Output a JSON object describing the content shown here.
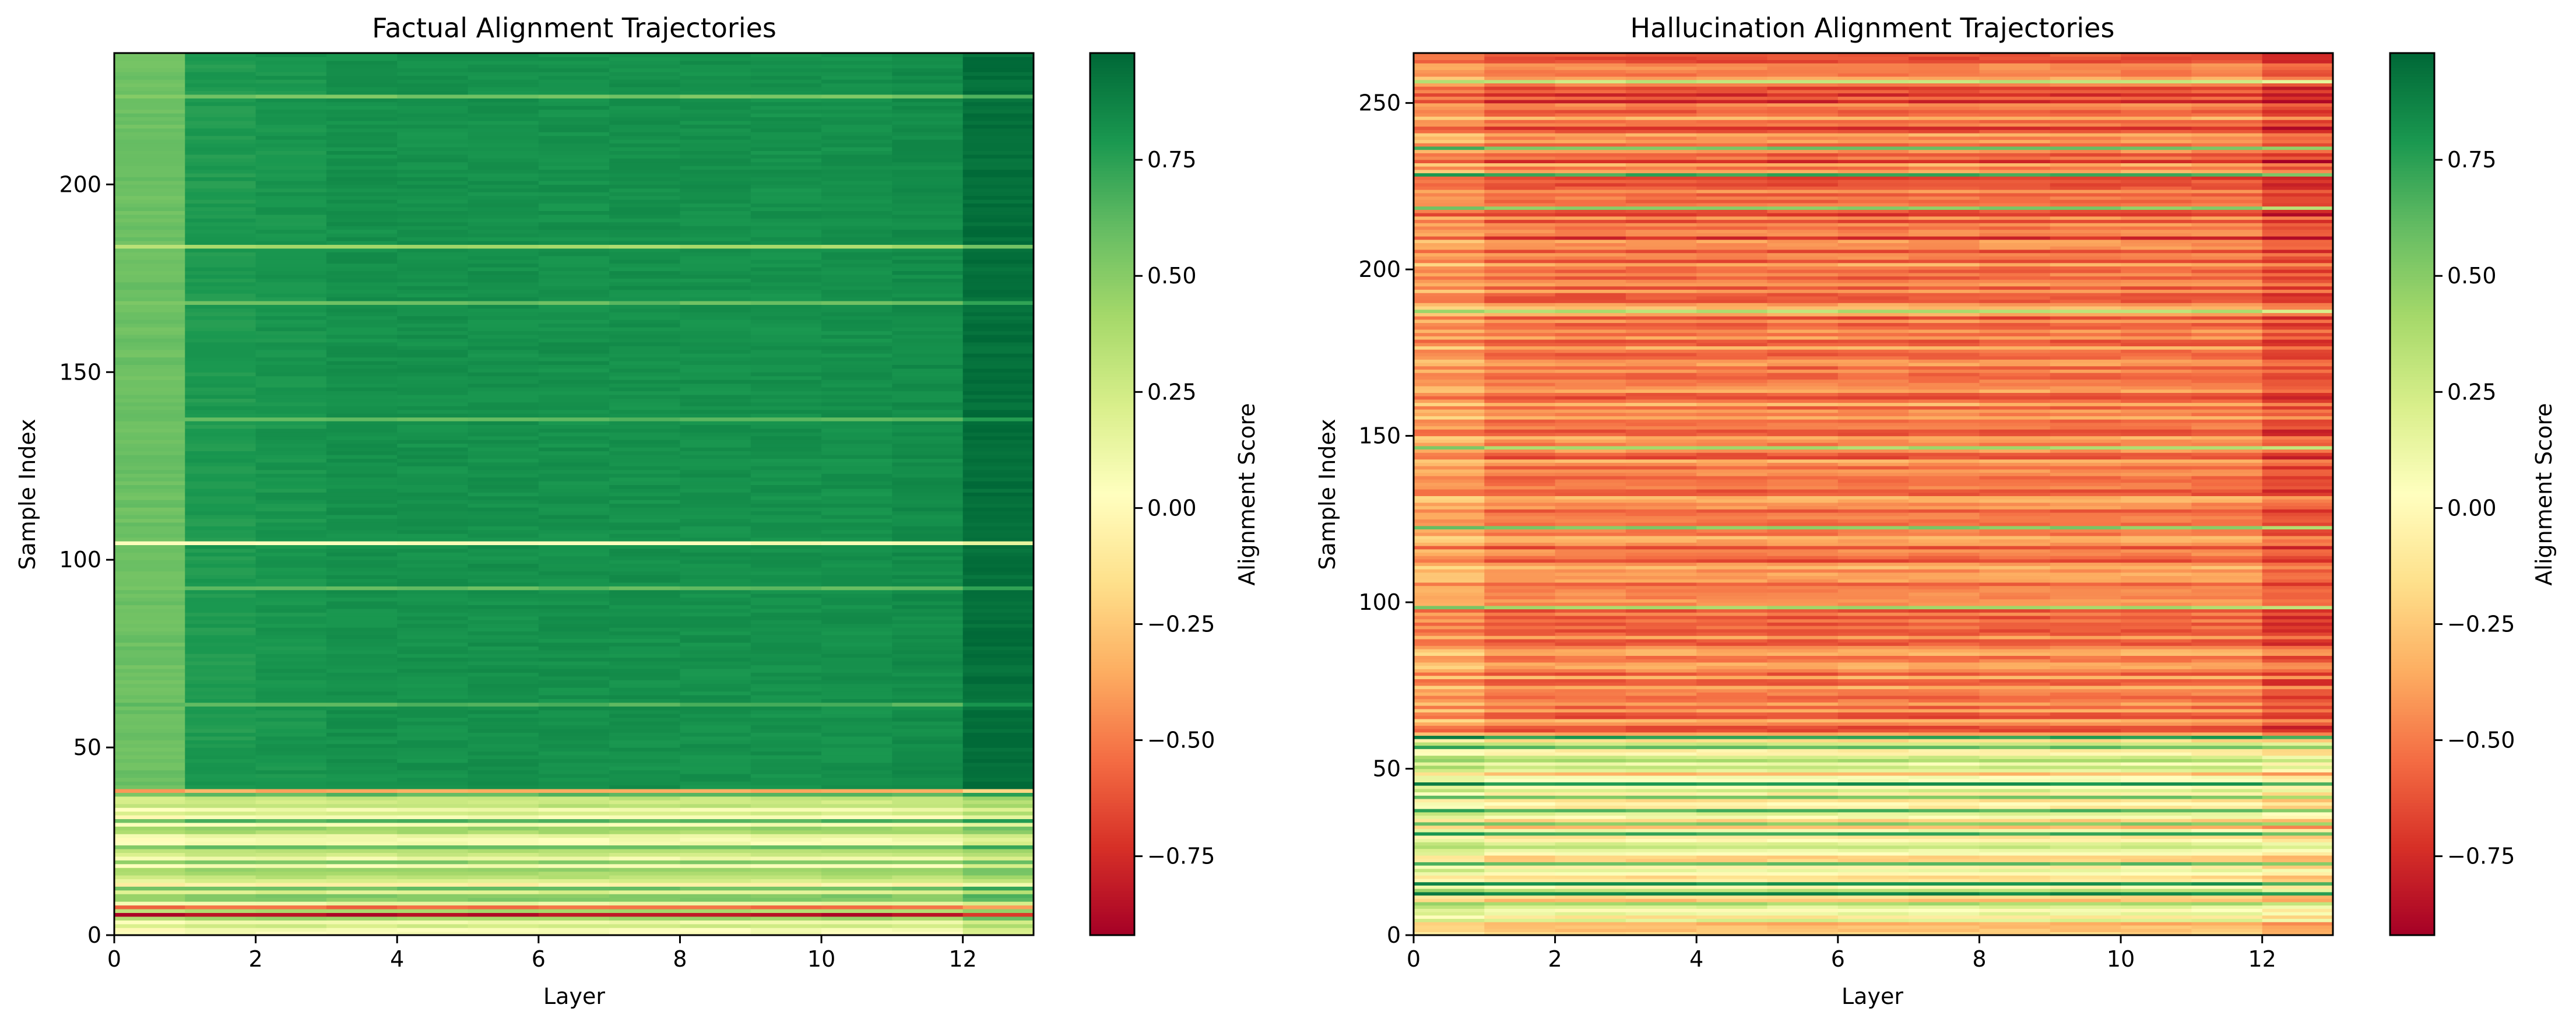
{
  "chart_data": [
    {
      "type": "heatmap",
      "title": "Factual Alignment Trajectories",
      "xlabel": "Layer",
      "ylabel": "Sample Index",
      "xlim": [
        0,
        13
      ],
      "ylim": [
        0,
        235
      ],
      "xticks": [
        0,
        2,
        4,
        6,
        8,
        10,
        12
      ],
      "yticks": [
        0,
        50,
        100,
        150,
        200
      ],
      "n_layers": 13,
      "n_samples": 235,
      "colormap": "RdYlGn",
      "colorbar": {
        "label": "Alignment Score",
        "range": [
          -0.92,
          0.98
        ],
        "ticks": [
          -0.75,
          -0.5,
          -0.25,
          0.0,
          0.25,
          0.5,
          0.75
        ],
        "tick_labels": [
          "−0.75",
          "−0.50",
          "−0.25",
          "0.00",
          "0.25",
          "0.50",
          "0.75"
        ]
      },
      "layer_profile": [
        0.58,
        0.78,
        0.8,
        0.82,
        0.82,
        0.82,
        0.82,
        0.82,
        0.82,
        0.82,
        0.82,
        0.84,
        0.95
      ],
      "low_band_max_sample": 39,
      "low_band_rows": [
        {
          "sample": 38,
          "value": -0.35
        },
        {
          "sample": 36,
          "value": 0.3
        },
        {
          "sample": 33,
          "value": 0.1
        },
        {
          "sample": 31,
          "value": 0.05
        },
        {
          "sample": 28,
          "value": 0.45
        },
        {
          "sample": 26,
          "value": 0.15
        },
        {
          "sample": 22,
          "value": 0.35
        },
        {
          "sample": 20,
          "value": 0.1
        },
        {
          "sample": 16,
          "value": 0.4
        },
        {
          "sample": 13,
          "value": -0.05
        },
        {
          "sample": 11,
          "value": 0.2
        },
        {
          "sample": 7,
          "value": -0.55
        },
        {
          "sample": 5,
          "value": -0.85
        },
        {
          "sample": 2,
          "value": 0.25
        }
      ],
      "outlier_rows": [
        {
          "sample": 104,
          "value": 0.05
        },
        {
          "sample": 183,
          "value": 0.4
        },
        {
          "sample": 223,
          "value": 0.55
        },
        {
          "sample": 168,
          "value": 0.6
        },
        {
          "sample": 92,
          "value": 0.6
        },
        {
          "sample": 137,
          "value": 0.62
        },
        {
          "sample": 61,
          "value": 0.65
        }
      ]
    },
    {
      "type": "heatmap",
      "title": "Hallucination Alignment Trajectories",
      "xlabel": "Layer",
      "ylabel": "Sample Index",
      "xlim": [
        0,
        13
      ],
      "ylim": [
        0,
        265
      ],
      "xticks": [
        0,
        2,
        4,
        6,
        8,
        10,
        12
      ],
      "yticks": [
        0,
        50,
        100,
        150,
        200,
        250
      ],
      "n_layers": 13,
      "n_samples": 265,
      "colormap": "RdYlGn",
      "colorbar": {
        "label": "Alignment Score",
        "range": [
          -0.92,
          0.98
        ],
        "ticks": [
          -0.75,
          -0.5,
          -0.25,
          0.0,
          0.25,
          0.5,
          0.75
        ],
        "tick_labels": [
          "−0.75",
          "−0.50",
          "−0.25",
          "0.00",
          "0.25",
          "0.50",
          "0.75"
        ]
      },
      "typical_value_range": [
        -0.65,
        -0.3
      ],
      "dark_band_range": [
        185,
        255
      ],
      "green_band_range": [
        0,
        60
      ],
      "green_rows": [
        {
          "sample": 256,
          "value": 0.3
        },
        {
          "sample": 236,
          "value": 0.55
        },
        {
          "sample": 228,
          "value": 0.7
        },
        {
          "sample": 218,
          "value": 0.5
        },
        {
          "sample": 187,
          "value": 0.35
        },
        {
          "sample": 146,
          "value": 0.4
        },
        {
          "sample": 122,
          "value": 0.5
        },
        {
          "sample": 98,
          "value": 0.4
        },
        {
          "sample": 59,
          "value": 0.75
        },
        {
          "sample": 56,
          "value": 0.6
        },
        {
          "sample": 52,
          "value": 0.4
        },
        {
          "sample": 45,
          "value": 0.8
        },
        {
          "sample": 41,
          "value": 0.55
        },
        {
          "sample": 37,
          "value": 0.65
        },
        {
          "sample": 33,
          "value": 0.5
        },
        {
          "sample": 30,
          "value": 0.7
        },
        {
          "sample": 27,
          "value": 0.2
        },
        {
          "sample": 24,
          "value": 0.05
        },
        {
          "sample": 21,
          "value": 0.6
        },
        {
          "sample": 15,
          "value": 0.8
        },
        {
          "sample": 12,
          "value": 0.85
        },
        {
          "sample": 9,
          "value": 0.4
        },
        {
          "sample": 4,
          "value": 0.2
        }
      ]
    }
  ]
}
